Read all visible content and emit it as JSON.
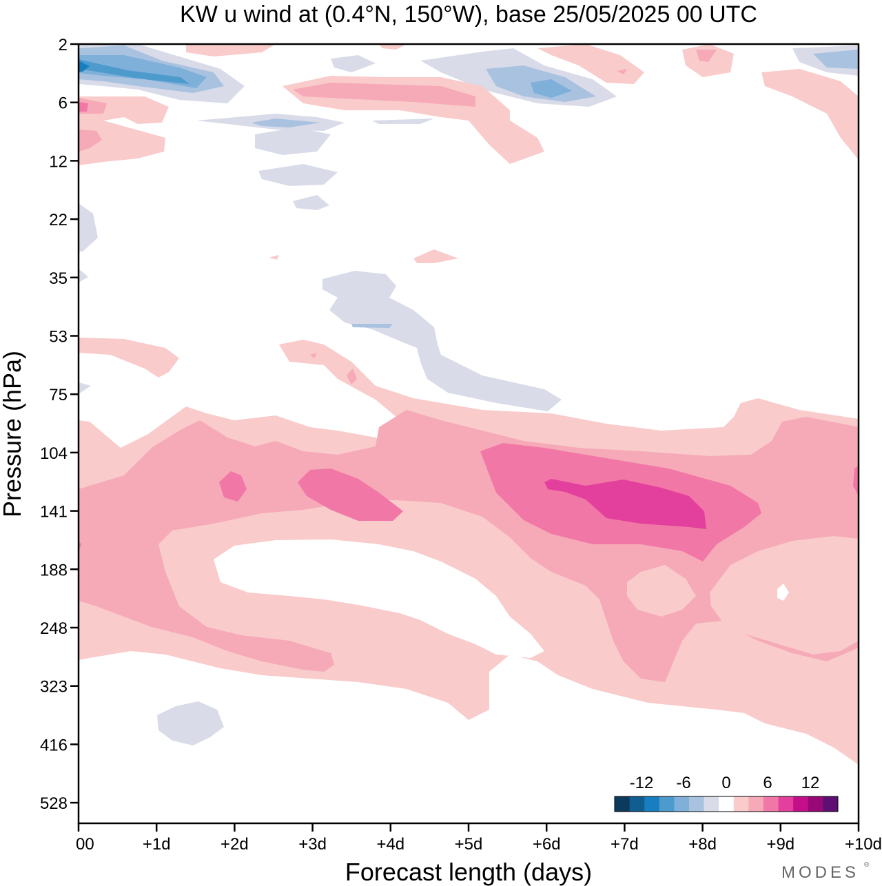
{
  "chart_data": {
    "type": "contour",
    "title": "KW u wind at (0.4°N, 150°W),  base 25/05/2025  00 UTC",
    "xlabel": "Forecast length (days)",
    "ylabel": "Pressure (hPa)",
    "x_ticks": [
      "00",
      "+1d",
      "+2d",
      "+3d",
      "+4d",
      "+5d",
      "+6d",
      "+7d",
      "+8d",
      "+9d",
      "+10d"
    ],
    "xlim": [
      0,
      10
    ],
    "y_ticks": [
      "2",
      "6",
      "12",
      "22",
      "35",
      "53",
      "75",
      "104",
      "141",
      "188",
      "248",
      "323",
      "416",
      "528"
    ],
    "y_scale": "log",
    "y_inverted": true,
    "colorbar": {
      "tick_labels": [
        "-12",
        "-6",
        "0",
        "6",
        "12"
      ],
      "levels": [
        -16,
        -14,
        -12,
        -10,
        -8,
        -6,
        -4,
        -2,
        2,
        4,
        6,
        8,
        10,
        12,
        14,
        16
      ],
      "colors": [
        "#0b3a5c",
        "#0f5e8f",
        "#177fbf",
        "#4d9acd",
        "#7fb0d9",
        "#a9c2e0",
        "#d9dbe9",
        "#ffffff",
        "#f9cbcb",
        "#f6a9b7",
        "#f178a6",
        "#e2409c",
        "#c30f88",
        "#990877",
        "#5e0f72"
      ]
    },
    "regions": [
      {
        "name": "upper-stratosphere negative core",
        "level": -8,
        "x_days": [
          0,
          1.6
        ],
        "pressure_hpa": [
          2.8,
          4
        ]
      },
      {
        "name": "upper-stratosphere negative core",
        "level": -6,
        "x_days": [
          5.8,
          6.2
        ],
        "pressure_hpa": [
          4,
          5
        ]
      },
      {
        "name": "lower stratosphere negative tongue",
        "level": -2,
        "x_days": [
          3.1,
          6.1
        ],
        "pressure_hpa": [
          35,
          80
        ]
      },
      {
        "name": "tropopause positive band",
        "level": 6,
        "x_days": [
          0,
          10
        ],
        "pressure_hpa": [
          95,
          400
        ]
      },
      {
        "name": "positive core",
        "level": 8,
        "x_days": [
          3,
          4.1
        ],
        "pressure_hpa": [
          120,
          150
        ]
      },
      {
        "name": "positive core",
        "level": 10,
        "x_days": [
          6,
          8.1
        ],
        "pressure_hpa": [
          125,
          155
        ]
      }
    ],
    "legend_location": "bottom-right",
    "grid": false
  },
  "branding": {
    "logo": "MODES"
  }
}
